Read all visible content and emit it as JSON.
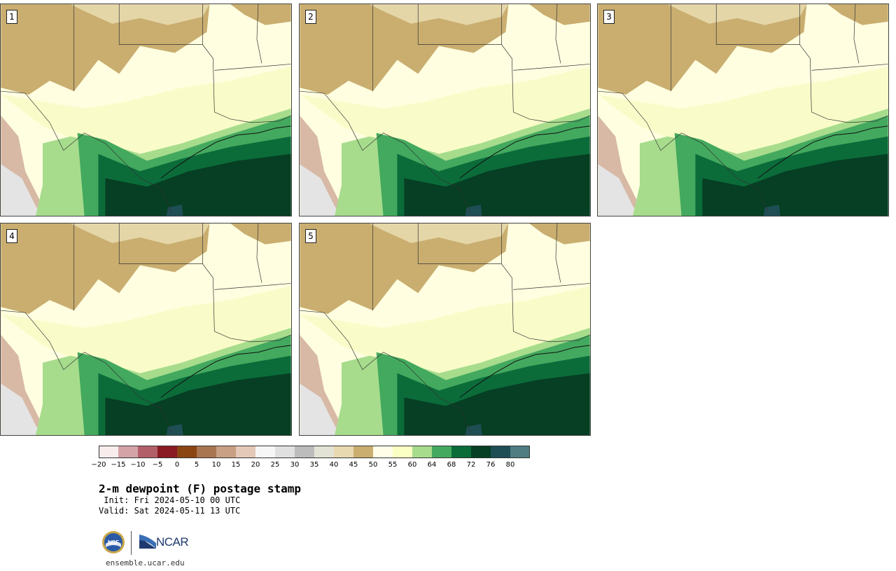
{
  "title": "2-m dewpoint (F) postage stamp",
  "init": " Init: Fri 2024-05-10 00 UTC",
  "valid": "Valid: Sat 2024-05-11 13 UTC",
  "website": "ensemble.ucar.edu",
  "logos": {
    "ncar_text": "NCAR",
    "nsf_text": "NSF"
  },
  "panels": [
    {
      "label": "1"
    },
    {
      "label": "2"
    },
    {
      "label": "3"
    },
    {
      "label": "4"
    },
    {
      "label": "5"
    }
  ],
  "colorbar": {
    "ticks": [
      "-20",
      "-15",
      "-10",
      "-5",
      "0",
      "5",
      "10",
      "15",
      "20",
      "25",
      "30",
      "35",
      "40",
      "45",
      "50",
      "55",
      "60",
      "64",
      "68",
      "72",
      "76",
      "80"
    ],
    "colors": [
      "#f9ecec",
      "#d3a3a8",
      "#b35f69",
      "#8a1a24",
      "#8b4513",
      "#a97551",
      "#c9a083",
      "#e5c9b8",
      "#f6f6f6",
      "#e0e0e0",
      "#bcbcbc",
      "#e3e3d5",
      "#e8d9b0",
      "#c9ae70",
      "#fffde8",
      "#fbffc3",
      "#a7dc8d",
      "#43a95e",
      "#0b6c3a",
      "#063f23",
      "#1f4e55",
      "#4f7d82"
    ]
  },
  "map_colors": {
    "dry_tan": "#c9ae70",
    "light_tan": "#e5d6a8",
    "cream": "#fffee0",
    "pale_yellow": "#f9fcc8",
    "light_green": "#a7dc8d",
    "green": "#43a95e",
    "dark_green": "#0b6c3a",
    "darkest_green": "#063f23",
    "teal": "#1f4e55",
    "pink_brown": "#d7b9a6",
    "gray": "#e4e4e4"
  }
}
